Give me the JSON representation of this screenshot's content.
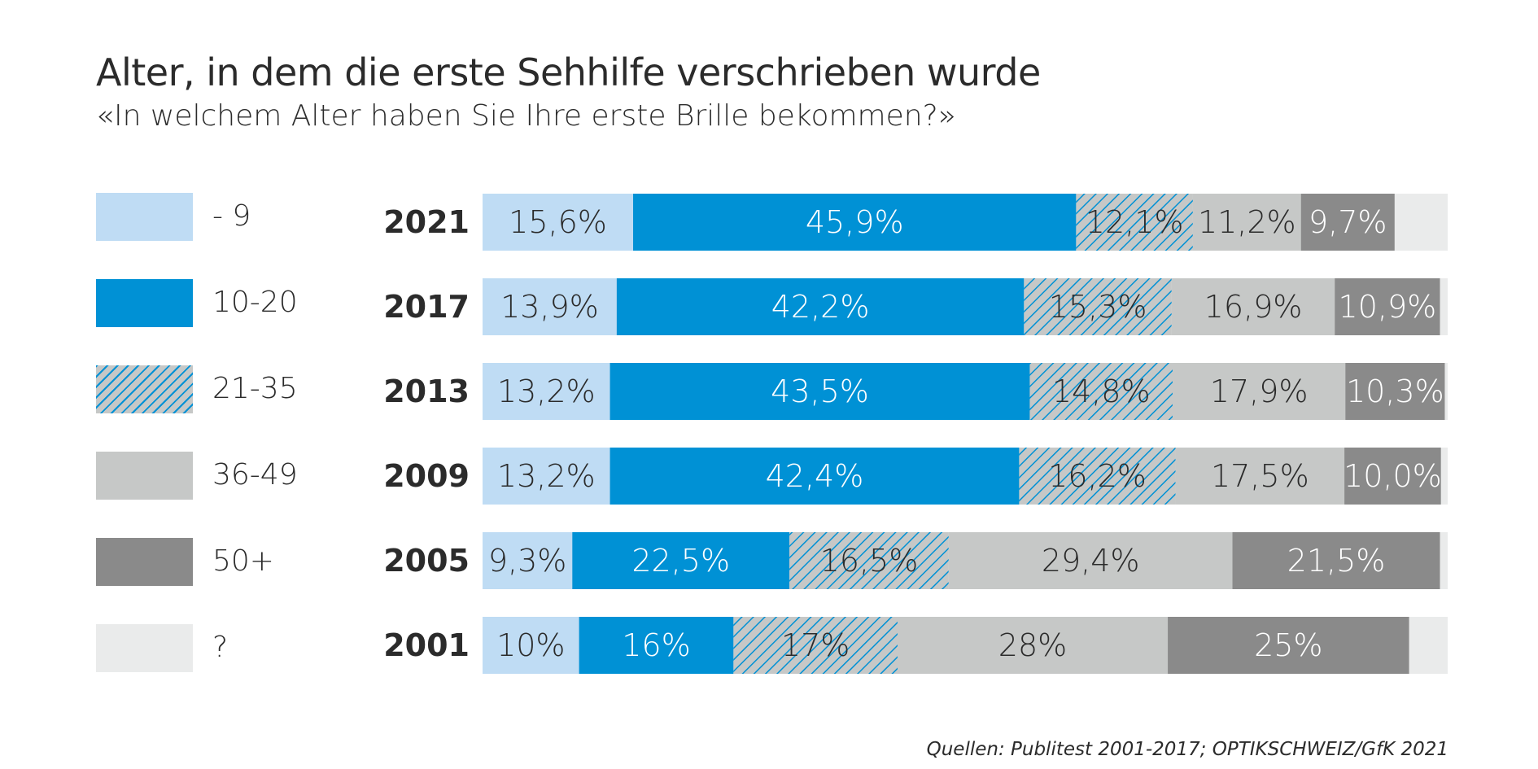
{
  "title": "Alter, in dem die erste Sehhilfe verschrieben wurde",
  "subtitle": "«In welchem Alter haben Sie Ihre erste Brille bekommen?»",
  "source": "Quellen: Publitest 2001-2017; OPTIKSCHWEIZ/GfK 2021",
  "colors": {
    "age_0_9": "#bfdcf4",
    "age_10_20": "#0091d5",
    "age_21_35_stripe": "#0091d5",
    "age_21_35_bg": "#c6c8c7",
    "age_36_49": "#c6c8c7",
    "age_50_plus": "#8a8a8a",
    "unknown": "#eaebeb",
    "label_dark": "#2b2b2b",
    "label_light": "#ffffff"
  },
  "legend": [
    {
      "label": "- 9",
      "key": "age_0_9",
      "pattern": false
    },
    {
      "label": "10-20",
      "key": "age_10_20",
      "pattern": false
    },
    {
      "label": "21-35",
      "key": "age_21_35",
      "pattern": true
    },
    {
      "label": "36-49",
      "key": "age_36_49",
      "pattern": false
    },
    {
      "label": "50+",
      "key": "age_50_plus",
      "pattern": false
    },
    {
      "label": "?",
      "key": "unknown",
      "pattern": false
    }
  ],
  "chart_data": {
    "type": "bar",
    "orientation": "horizontal",
    "stacked": true,
    "categories": [
      "2021",
      "2017",
      "2013",
      "2009",
      "2005",
      "2001"
    ],
    "xlim": [
      0,
      100
    ],
    "series": [
      {
        "name": "- 9",
        "values": [
          15.6,
          13.9,
          13.2,
          13.2,
          9.3,
          10
        ],
        "labels": [
          "15,6%",
          "13,9%",
          "13,2%",
          "13,2%",
          "9,3%",
          "10%"
        ]
      },
      {
        "name": "10-20",
        "values": [
          45.9,
          42.2,
          43.5,
          42.4,
          22.5,
          16
        ],
        "labels": [
          "45,9%",
          "42,2%",
          "43,5%",
          "42,4%",
          "22,5%",
          "16%"
        ]
      },
      {
        "name": "21-35",
        "values": [
          12.1,
          15.3,
          14.8,
          16.2,
          16.5,
          17
        ],
        "labels": [
          "12,1%",
          "15,3%",
          "14,8%",
          "16,2%",
          "16,5%",
          "17%"
        ]
      },
      {
        "name": "36-49",
        "values": [
          11.2,
          16.9,
          17.9,
          17.5,
          29.4,
          28
        ],
        "labels": [
          "11,2%",
          "16,9%",
          "17,9%",
          "17,5%",
          "29,4%",
          "28%"
        ]
      },
      {
        "name": "50+",
        "values": [
          9.7,
          10.9,
          10.3,
          10.0,
          21.5,
          25
        ],
        "labels": [
          "9,7%",
          "10,9%",
          "10,3%",
          "10,0%",
          "21,5%",
          "25%"
        ]
      },
      {
        "name": "?",
        "values": [
          5.5,
          0.8,
          0.3,
          0.7,
          0.8,
          4.0
        ],
        "labels": [
          "",
          "",
          "",
          "",
          "",
          ""
        ]
      }
    ]
  }
}
